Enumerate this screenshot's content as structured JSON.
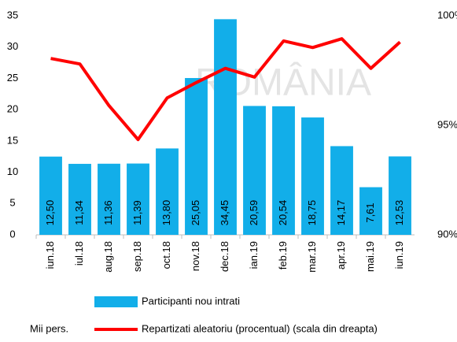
{
  "chart_data": {
    "type": "bar_line",
    "categories": [
      "iun.18",
      "iul.18",
      "aug.18",
      "sep.18",
      "oct.18",
      "nov.18",
      "dec.18",
      "ian.19",
      "feb.19",
      "mar.19",
      "apr.19",
      "mai.19",
      "iun.19"
    ],
    "series": [
      {
        "name": "Participanti nou intrati",
        "color": "#12aee9",
        "type": "bar",
        "values": [
          12.5,
          11.34,
          11.36,
          11.39,
          13.8,
          25.05,
          34.45,
          20.59,
          20.54,
          18.75,
          14.17,
          7.61,
          12.53
        ],
        "value_labels": [
          "12,50",
          "11,34",
          "11,36",
          "11,39",
          "13,80",
          "25,05",
          "34,45",
          "20,59",
          "20,54",
          "18,75",
          "14,17",
          "7,61",
          "12,53"
        ]
      },
      {
        "name": "Repartizati aleatoriu (procentual) (scala din dreapta)",
        "color": "#ff0000",
        "type": "line",
        "axis": "y2",
        "values": [
          98.05,
          97.8,
          95.9,
          94.35,
          96.25,
          96.95,
          97.6,
          97.2,
          98.85,
          98.55,
          98.95,
          97.6,
          98.8
        ]
      }
    ],
    "ylabel": "Mii pers.",
    "annotation": "ROMÂNIA",
    "ylim": [
      0,
      35
    ],
    "yticks": [
      0,
      5,
      10,
      15,
      20,
      25,
      30,
      35
    ],
    "y2lim": [
      90,
      100
    ],
    "y2ticks": [
      {
        "value": 90,
        "label": "90%"
      },
      {
        "value": 95,
        "label": "95%"
      },
      {
        "value": 100,
        "label": "100%"
      }
    ],
    "grid": false,
    "legend": "bottom"
  }
}
